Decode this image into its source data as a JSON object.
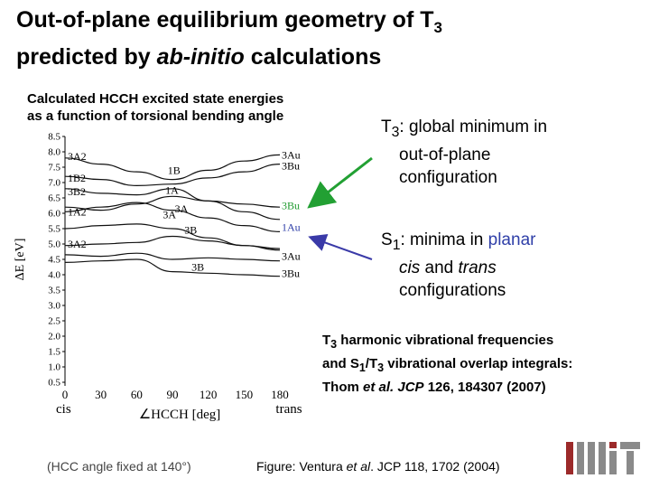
{
  "title": {
    "line1_a": "Out-of-plane equilibrium geometry of T",
    "line1_sub": "3",
    "line2_a": "predicted by ",
    "line2_em": "ab-initio",
    "line2_b": " calculations"
  },
  "subtitle": {
    "line1": "Calculated HCCH excited state energies",
    "line2": "as a function of torsional bending angle"
  },
  "t3_note": {
    "label": "T",
    "label_sub": "3",
    "text1": ": global minimum in",
    "text2": "out-of-plane",
    "text3": "configuration"
  },
  "s1_note": {
    "label": "S",
    "label_sub": "1",
    "text1": ": minima in ",
    "text1_blue": "planar",
    "text2_em1": "cis",
    "text2_mid": " and ",
    "text2_em2": "trans",
    "text3": "configurations"
  },
  "harmonic": {
    "line1_a": "T",
    "line1_sub": "3",
    "line1_b": " harmonic vibrational frequencies",
    "line2_a": "and S",
    "line2_sub1": "1",
    "line2_b": "/T",
    "line2_sub2": "3",
    "line2_c": " vibrational overlap integrals:",
    "line3_a": "Thom ",
    "line3_em1": "et al. JCP",
    "line3_b": " 126, 184307 (2007)"
  },
  "hcc_note": "(HCC angle fixed at 140°)",
  "figure_ref": {
    "a": "Figure: Ventura ",
    "em": "et al",
    "b": ". JCP 118, 1702 (2004)"
  },
  "colors": {
    "arrow_green": "#22a033",
    "arrow_blue": "#3a3aa8",
    "highlight_green": "#1e9a2e",
    "highlight_blue": "#2f3fa8",
    "logo_dark": "#8a8a8a",
    "logo_red": "#9c2a2a"
  },
  "chart_data": {
    "type": "line",
    "ylabel": "ΔE [eV]",
    "xlabel_left": "cis",
    "xlabel_angle": "∠HCCH [deg]",
    "xlabel_right": "trans",
    "x_ticks": [
      "0",
      "30",
      "60",
      "90",
      "120",
      "150",
      "180"
    ],
    "y_ticks": [
      "8.5",
      "8.0",
      "7.5",
      "7.0",
      "6.5",
      "6.0",
      "5.5",
      "5.0",
      "4.5",
      "4.0",
      "3.5",
      "3.0",
      "2.5",
      "2.0",
      "1.5",
      "1.0",
      "0.5"
    ],
    "xlim": [
      0,
      180
    ],
    "ylim": [
      0.5,
      8.5
    ],
    "x": [
      0,
      30,
      60,
      90,
      120,
      150,
      180
    ],
    "series": [
      {
        "values": [
          7.8,
          7.6,
          7.35,
          7.1,
          7.4,
          7.7,
          7.9
        ],
        "highlight": false
      },
      {
        "values": [
          7.2,
          7.1,
          6.9,
          6.95,
          7.15,
          7.35,
          7.6
        ],
        "highlight": false
      },
      {
        "values": [
          6.8,
          6.65,
          6.6,
          6.8,
          6.4,
          6.05,
          5.8
        ],
        "highlight": false
      },
      {
        "values": [
          6.2,
          6.1,
          6.3,
          6.55,
          6.4,
          6.3,
          6.2
        ],
        "highlight": "blue"
      },
      {
        "values": [
          6.05,
          6.2,
          6.35,
          6.1,
          5.85,
          5.6,
          5.4
        ],
        "highlight": "green"
      },
      {
        "values": [
          5.5,
          5.6,
          5.65,
          5.5,
          5.2,
          4.95,
          4.8
        ],
        "highlight": false
      },
      {
        "values": [
          4.95,
          5.0,
          5.05,
          5.25,
          5.1,
          4.95,
          4.85
        ],
        "highlight": false
      },
      {
        "values": [
          4.65,
          4.6,
          4.7,
          4.5,
          4.55,
          4.5,
          4.45
        ],
        "highlight": false
      },
      {
        "values": [
          4.4,
          4.45,
          4.5,
          4.1,
          4.05,
          4.0,
          3.95
        ],
        "highlight": false
      }
    ],
    "left_labels": [
      {
        "text": "3A2",
        "y": 7.85
      },
      {
        "text": "1B2",
        "y": 7.15
      },
      {
        "text": "3B2",
        "y": 6.7
      },
      {
        "text": "1A2",
        "y": 6.05
      },
      {
        "text": "3A2",
        "y": 5.0
      }
    ],
    "right_labels": [
      {
        "text": "3Au",
        "y": 7.9,
        "color": "#000000"
      },
      {
        "text": "3Bu",
        "y": 7.55,
        "color": "#000000"
      },
      {
        "text": "3Bu",
        "y": 6.25,
        "color": "#1e9a2e"
      },
      {
        "text": "1Au",
        "y": 5.55,
        "color": "#2f3fa8"
      },
      {
        "text": "3Au",
        "y": 4.6,
        "color": "#000000"
      },
      {
        "text": "3Bu",
        "y": 4.05,
        "color": "#000000"
      }
    ],
    "inner_labels": [
      {
        "text": "1B",
        "x": 86,
        "y": 7.4
      },
      {
        "text": "1A",
        "x": 84,
        "y": 6.75
      },
      {
        "text": "3A",
        "x": 92,
        "y": 6.15
      },
      {
        "text": "3A",
        "x": 82,
        "y": 5.95
      },
      {
        "text": "3B",
        "x": 100,
        "y": 5.45
      },
      {
        "text": "3B",
        "x": 106,
        "y": 4.25
      }
    ]
  }
}
